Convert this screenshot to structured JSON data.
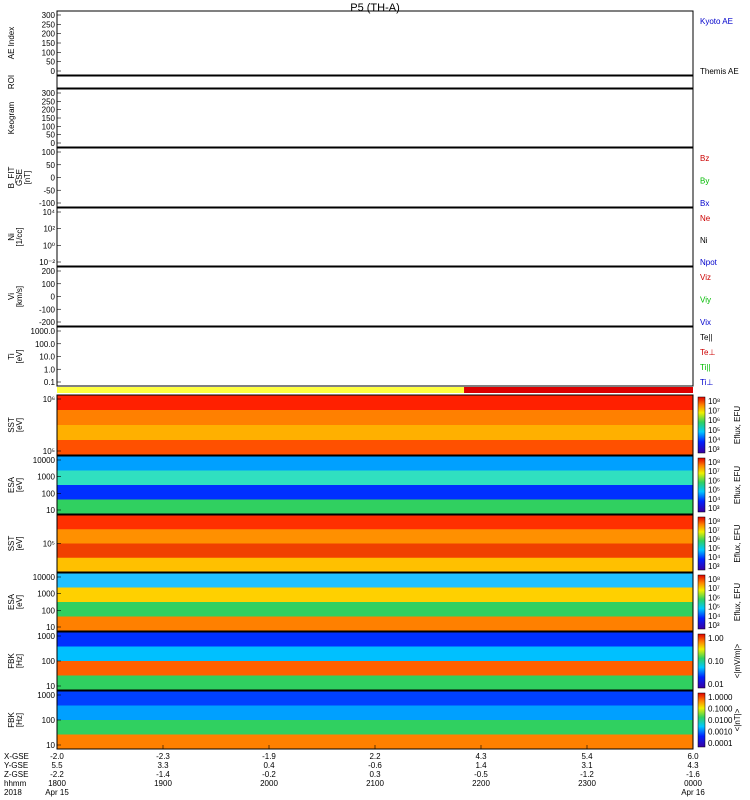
{
  "chart_data": {
    "type": "line",
    "title": "P5 (TH-A)",
    "panels": [
      {
        "id": "ae",
        "ylabel": "AE Index",
        "ylim": [
          0,
          300
        ],
        "ticks": [
          "300",
          "250",
          "200",
          "150",
          "100",
          "50",
          "0"
        ],
        "legend": [
          {
            "label": "Kyoto AE",
            "color": "#0000cc"
          },
          {
            "label": "Themis AE",
            "color": "#000000"
          }
        ]
      },
      {
        "id": "roi",
        "ylabel": "ROI",
        "ticks": []
      },
      {
        "id": "keogram",
        "ylabel": "Keogram",
        "ylim": [
          0,
          300
        ],
        "ticks": [
          "300",
          "250",
          "200",
          "150",
          "100",
          "50",
          "0"
        ]
      },
      {
        "id": "bfit",
        "ylabel": "B_FIT\nGSE\n[nT]",
        "ylim": [
          -100,
          100
        ],
        "ticks": [
          "100",
          "50",
          "0",
          "-50",
          "-100"
        ],
        "legend": [
          {
            "label": "Bz",
            "color": "#cc0000"
          },
          {
            "label": "By",
            "color": "#00bb00"
          },
          {
            "label": "Bx",
            "color": "#0000cc"
          }
        ]
      },
      {
        "id": "ni",
        "ylabel": "Ni\n[1/cc]",
        "ylim": "log 1e-2..1e5",
        "ticks": [
          "10⁴",
          "10²",
          "10⁰",
          "10⁻²"
        ],
        "legend": [
          {
            "label": "Ne",
            "color": "#cc0000"
          },
          {
            "label": "Ni",
            "color": "#000000"
          },
          {
            "label": "Npot",
            "color": "#0000cc"
          }
        ]
      },
      {
        "id": "vi",
        "ylabel": "Vi\n[km/s]",
        "ylim": [
          -300,
          300
        ],
        "ticks": [
          "200",
          "100",
          "0",
          "-100",
          "-200"
        ],
        "legend": [
          {
            "label": "Viz",
            "color": "#cc0000"
          },
          {
            "label": "Viy",
            "color": "#00bb00"
          },
          {
            "label": "Vix",
            "color": "#0000cc"
          }
        ]
      },
      {
        "id": "ti",
        "ylabel": "Ti\n[eV]",
        "ylim": "log 0.1..1000",
        "ticks": [
          "1000.0",
          "100.0",
          "10.0",
          "1.0",
          "0.1"
        ],
        "legend": [
          {
            "label": "Te||",
            "color": "#000000"
          },
          {
            "label": "Te⊥",
            "color": "#cc0000"
          },
          {
            "label": "Ti||",
            "color": "#00bb00"
          },
          {
            "label": "Ti⊥",
            "color": "#0000cc"
          }
        ]
      },
      {
        "id": "sst_e",
        "ylabel": "SST\n[eV]",
        "ticks": [
          "10⁶",
          "10⁵"
        ],
        "cbar": "Eflux, EFU",
        "cbticks": [
          "10⁸",
          "10⁷",
          "10⁶",
          "10⁵",
          "10⁴",
          "10³"
        ]
      },
      {
        "id": "esa_e",
        "ylabel": "ESA\n[eV]",
        "ticks": [
          "10000",
          "1000",
          "100",
          "10"
        ],
        "cbar": "Eflux, EFU",
        "cbticks": [
          "10⁸",
          "10⁷",
          "10⁶",
          "10⁵",
          "10⁴",
          "10³"
        ]
      },
      {
        "id": "sst_i",
        "ylabel": "SST\n[eV]",
        "ticks": [
          "10⁵"
        ],
        "cbar": "Eflux, EFU",
        "cbticks": [
          "10⁸",
          "10⁷",
          "10⁶",
          "10⁵",
          "10⁴",
          "10³"
        ]
      },
      {
        "id": "esa_i",
        "ylabel": "ESA\n[eV]",
        "ticks": [
          "10000",
          "1000",
          "100",
          "10"
        ],
        "cbar": "Eflux, EFU",
        "cbticks": [
          "10⁸",
          "10⁷",
          "10⁶",
          "10⁵",
          "10⁴",
          "10³"
        ]
      },
      {
        "id": "fbk_e",
        "ylabel": "FBK\n[Hz]",
        "ticks": [
          "1000",
          "100",
          "10"
        ],
        "cbar": "<|mV/m|>",
        "cbticks": [
          "1.00",
          "0.10",
          "0.01"
        ]
      },
      {
        "id": "fbk_b",
        "ylabel": "FBK\n[Hz]",
        "ticks": [
          "1000",
          "100",
          "10"
        ],
        "cbar": "<|nT|>",
        "cbticks": [
          "1.0000",
          "0.1000",
          "0.0100",
          "0.0010",
          "0.0001"
        ]
      }
    ],
    "x_axis": {
      "row_labels": [
        "X-GSE",
        "Y-GSE",
        "Z-GSE",
        "hhmm",
        "2018"
      ],
      "columns": [
        {
          "vals": [
            "-2.0",
            "5.5",
            "-2.2",
            "1800",
            "Apr 15"
          ]
        },
        {
          "vals": [
            "-2.3",
            "3.3",
            "-1.4",
            "1900",
            ""
          ]
        },
        {
          "vals": [
            "-1.9",
            "0.4",
            "-0.2",
            "2000",
            ""
          ]
        },
        {
          "vals": [
            "2.2",
            "-0.6",
            "0.3",
            "2100",
            ""
          ]
        },
        {
          "vals": [
            "4.3",
            "1.4",
            "-0.5",
            "2200",
            ""
          ]
        },
        {
          "vals": [
            "5.4",
            "3.1",
            "-1.2",
            "2300",
            ""
          ]
        },
        {
          "vals": [
            "6.0",
            "4.3",
            "-1.6",
            "0000",
            "Apr 16"
          ]
        }
      ]
    }
  }
}
